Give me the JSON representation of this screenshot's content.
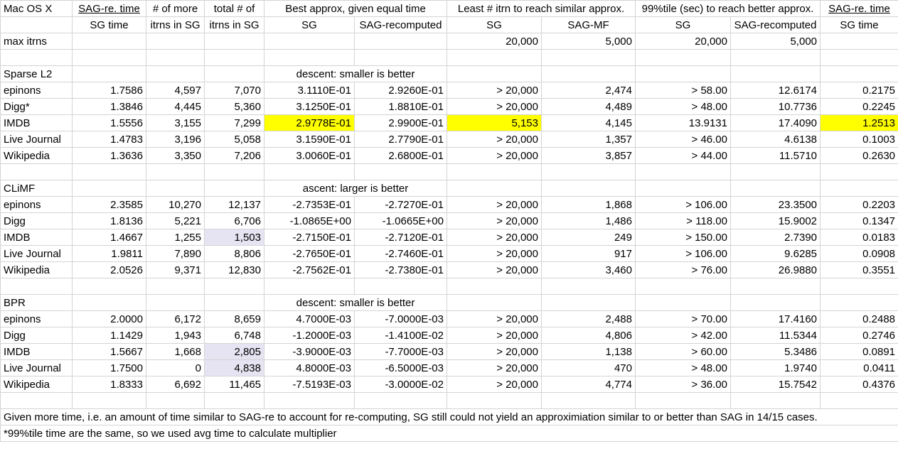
{
  "colors": {
    "highlight_yellow": "#ffff00",
    "highlight_lavender": "#e6e4f2"
  },
  "header": {
    "corner": "Mac OS X",
    "h1": [
      "SAG-re. time",
      "# of more",
      "total # of",
      "Best approx, given equal time",
      "Least # itrn to reach similar approx.",
      "99%tile (sec) to reach better approx.",
      "SAG-re. time"
    ],
    "h2": [
      "SG time",
      "itrns in SG",
      "itrns in SG",
      "SG",
      "SAG-recomputed",
      "SG",
      "SAG-MF",
      "SG",
      "SAG-recomputed",
      "SG time"
    ]
  },
  "max_itrns": {
    "label": "max itrns",
    "values": [
      "20,000",
      "5,000",
      "20,000",
      "5,000"
    ]
  },
  "sections": [
    {
      "name": "Sparse L2",
      "note": "descent: smaller is better",
      "rows": [
        {
          "name": "epinons",
          "v": [
            "1.7586",
            "4,597",
            "7,070",
            "3.1110E-01",
            "2.9260E-01",
            "> 20,000",
            "2,474",
            "> 58.00",
            "12.6174",
            "0.2175"
          ]
        },
        {
          "name": "Digg*",
          "v": [
            "1.3846",
            "4,445",
            "5,360",
            "3.1250E-01",
            "1.8810E-01",
            "> 20,000",
            "4,489",
            "> 48.00",
            "10.7736",
            "0.2245"
          ]
        },
        {
          "name": "IMDB",
          "v": [
            "1.5556",
            "3,155",
            "7,299",
            "2.9778E-01",
            "2.9900E-01",
            "5,153",
            "4,145",
            "13.9131",
            "17.4090",
            "1.2513"
          ]
        },
        {
          "name": "Live Journal",
          "v": [
            "1.4783",
            "3,196",
            "5,058",
            "3.1590E-01",
            "2.7790E-01",
            "> 20,000",
            "1,357",
            "> 46.00",
            "4.6138",
            "0.1003"
          ]
        },
        {
          "name": "Wikipedia",
          "v": [
            "1.3636",
            "3,350",
            "7,206",
            "3.0060E-01",
            "2.6800E-01",
            "> 20,000",
            "3,857",
            "> 44.00",
            "11.5710",
            "0.2630"
          ]
        }
      ]
    },
    {
      "name": "CLiMF",
      "note": "ascent: larger is better",
      "rows": [
        {
          "name": "epinons",
          "v": [
            "2.3585",
            "10,270",
            "12,137",
            "-2.7353E-01",
            "-2.7270E-01",
            "> 20,000",
            "1,868",
            "> 106.00",
            "23.3500",
            "0.2203"
          ]
        },
        {
          "name": "Digg",
          "v": [
            "1.8136",
            "5,221",
            "6,706",
            "-1.0865E+00",
            "-1.0665E+00",
            "> 20,000",
            "1,486",
            "> 118.00",
            "15.9002",
            "0.1347"
          ]
        },
        {
          "name": "IMDB",
          "v": [
            "1.4667",
            "1,255",
            "1,503",
            "-2.7150E-01",
            "-2.7120E-01",
            "> 20,000",
            "249",
            "> 150.00",
            "2.7390",
            "0.0183"
          ]
        },
        {
          "name": "Live Journal",
          "v": [
            "1.9811",
            "7,890",
            "8,806",
            "-2.7650E-01",
            "-2.7460E-01",
            "> 20,000",
            "917",
            "> 106.00",
            "9.6285",
            "0.0908"
          ]
        },
        {
          "name": "Wikipedia",
          "v": [
            "2.0526",
            "9,371",
            "12,830",
            "-2.7562E-01",
            "-2.7380E-01",
            "> 20,000",
            "3,460",
            "> 76.00",
            "26.9880",
            "0.3551"
          ]
        }
      ]
    },
    {
      "name": "BPR",
      "note": "descent: smaller is better",
      "rows": [
        {
          "name": "epinons",
          "v": [
            "2.0000",
            "6,172",
            "8,659",
            "4.7000E-03",
            "-7.0000E-03",
            "> 20,000",
            "2,488",
            "> 70.00",
            "17.4160",
            "0.2488"
          ]
        },
        {
          "name": "Digg",
          "v": [
            "1.1429",
            "1,943",
            "6,748",
            "-1.2000E-03",
            "-1.4100E-02",
            "> 20,000",
            "4,806",
            "> 42.00",
            "11.5344",
            "0.2746"
          ]
        },
        {
          "name": "IMDB",
          "v": [
            "1.5667",
            "1,668",
            "2,805",
            "-3.9000E-03",
            "-7.7000E-03",
            "> 20,000",
            "1,138",
            "> 60.00",
            "5.3486",
            "0.0891"
          ]
        },
        {
          "name": "Live Journal",
          "v": [
            "1.7500",
            "0",
            "4,838",
            "4.8000E-03",
            "-6.5000E-03",
            "> 20,000",
            "470",
            "> 48.00",
            "1.9740",
            "0.0411"
          ]
        },
        {
          "name": "Wikipedia",
          "v": [
            "1.8333",
            "6,692",
            "11,465",
            "-7.5193E-03",
            "-3.0000E-02",
            "> 20,000",
            "4,774",
            "> 36.00",
            "15.7542",
            "0.4376"
          ]
        }
      ]
    }
  ],
  "footnotes": [
    "Given more time, i.e. an amount of time similar to SAG-re to account for re-computing, SG still could not yield an approximiation similar to or better than SAG in 14/15 cases.",
    "*99%tile time are the same, so we used avg time to calculate multiplier"
  ]
}
